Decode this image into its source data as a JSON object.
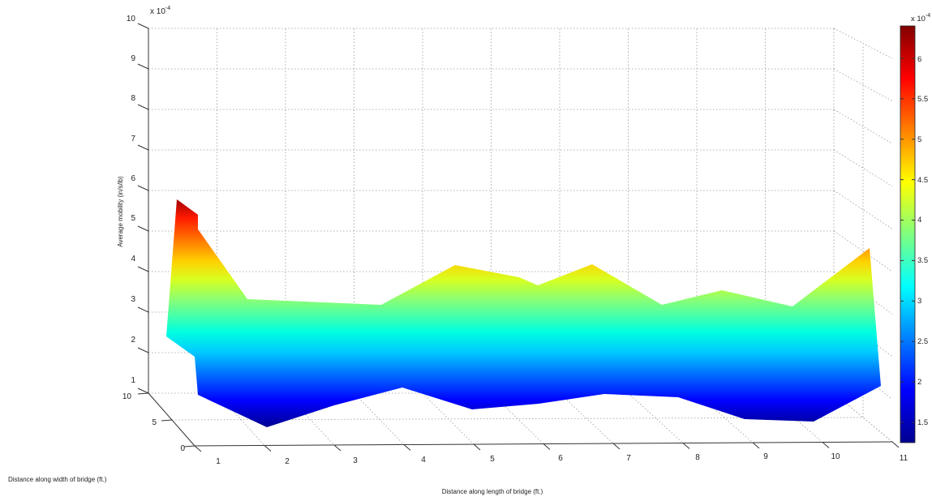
{
  "chart_data": {
    "type": "surface",
    "xlabel": "Distance along length of bridge (ft.)",
    "ylabel": "Distance along width of bridge (ft.)",
    "zlabel": "Average mobility (in/s/lb)",
    "z_exponent_label": "x 10",
    "z_exponent_power": "-4",
    "colorbar_exponent_label": "x 10",
    "colorbar_exponent_power": "-4",
    "x_ticks": [
      "1",
      "2",
      "3",
      "4",
      "5",
      "6",
      "7",
      "8",
      "9",
      "10",
      "11"
    ],
    "y_ticks": [
      "0",
      "5",
      "10"
    ],
    "z_ticks": [
      "1",
      "2",
      "3",
      "4",
      "5",
      "6",
      "7",
      "8",
      "9",
      "10"
    ],
    "colorbar_ticks": [
      "1.5",
      "2",
      "2.5",
      "3",
      "3.5",
      "4",
      "4.5",
      "5",
      "5.5",
      "6"
    ],
    "xlim": [
      1,
      11
    ],
    "ylim": [
      0,
      10
    ],
    "zlim": [
      1,
      10
    ],
    "colorbar_range": [
      1.25,
      6.4
    ],
    "colormap": "jet",
    "grid": true,
    "surface": {
      "x": [
        1,
        2,
        3,
        4,
        5,
        6,
        7,
        8,
        9,
        10,
        11
      ],
      "front_edge_y0": [
        2.2,
        1.5,
        1.9,
        2.5,
        2.2,
        2.0,
        2.2,
        2.2,
        2.0,
        2.1,
        2.5
      ],
      "back_edge_y10": [
        5.6,
        3.2,
        3.1,
        3.6,
        3.4,
        3.5,
        3.4,
        3.3,
        3.3,
        3.1,
        4.6
      ],
      "peaks_mid_width": [
        {
          "x": 4.5,
          "value": 4.0
        },
        {
          "x": 6.5,
          "value": 4.0
        }
      ]
    }
  }
}
